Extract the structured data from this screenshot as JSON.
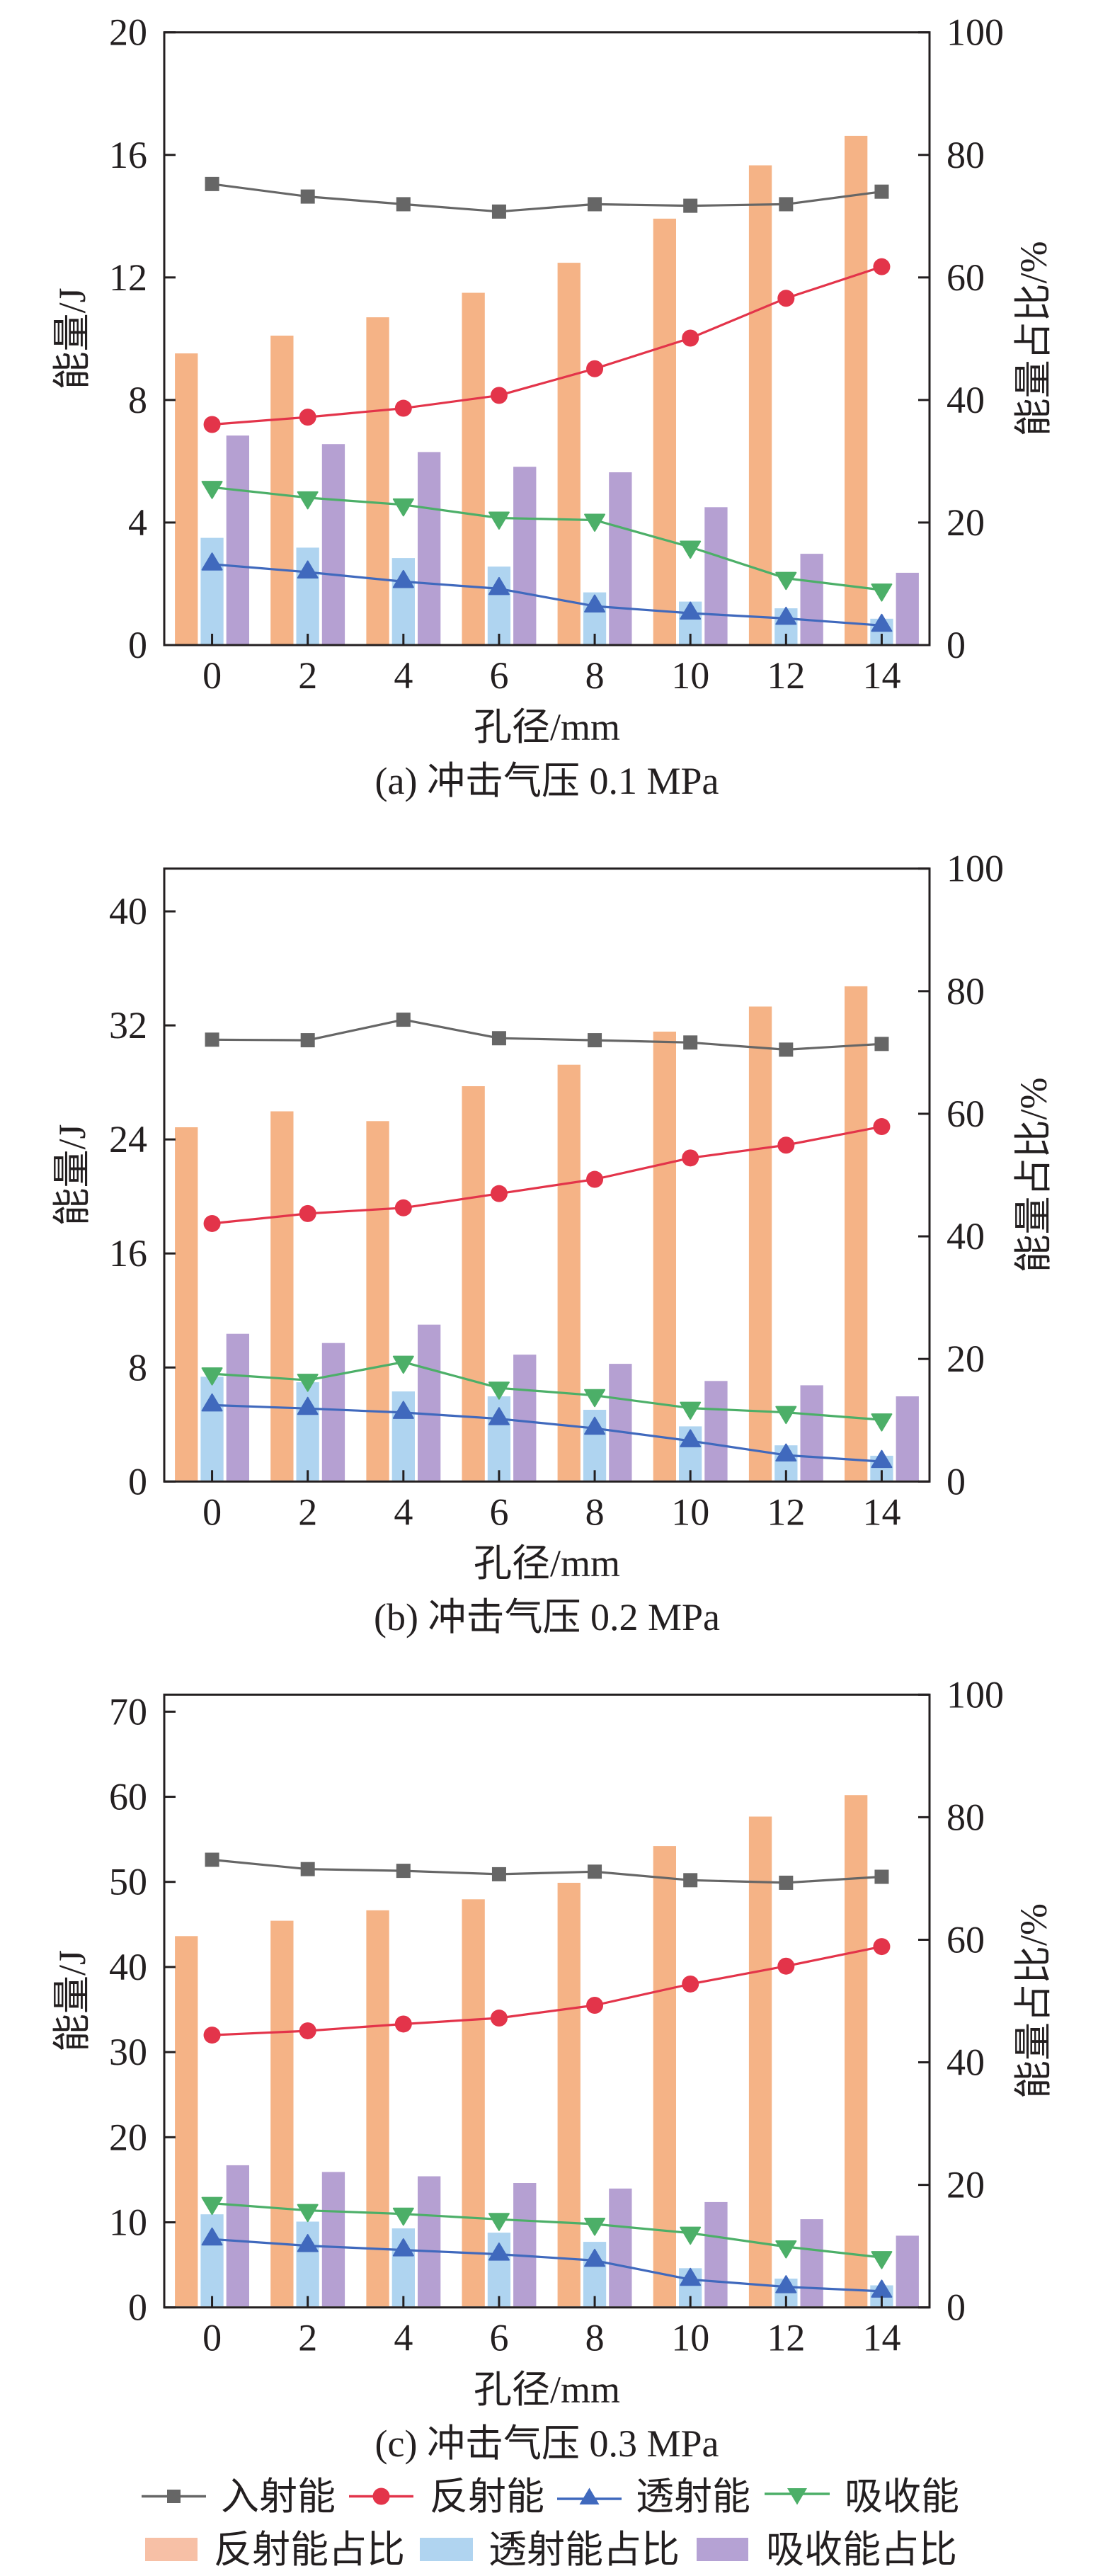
{
  "legend": {
    "placement": "bottom",
    "lines": [
      {
        "label": "入射能",
        "color": "#666666",
        "marker": "square"
      },
      {
        "label": "反射能",
        "color": "#e3344a",
        "marker": "circle"
      },
      {
        "label": "透射能",
        "color": "#4069bd",
        "marker": "triangle-up"
      },
      {
        "label": "吸收能",
        "color": "#4caf68",
        "marker": "triangle-down"
      }
    ],
    "bars": [
      {
        "label": "反射能占比",
        "color": "#f7c0a6"
      },
      {
        "label": "透射能占比",
        "color": "#b0d4f0"
      },
      {
        "label": "吸收能占比",
        "color": "#b5a2d4"
      }
    ]
  },
  "chart_data": [
    {
      "type": "bar",
      "combo": "bar+line",
      "title": "(a) 冲击气压 0.1 MPa",
      "xlabel": "孔径/mm",
      "ylabel": "能量/J",
      "y2label": "能量占比/%",
      "x": [
        0,
        2,
        4,
        6,
        8,
        10,
        12,
        14
      ],
      "xticks": [
        0,
        2,
        4,
        6,
        8,
        10,
        12,
        14
      ],
      "xlim": [
        -1,
        15
      ],
      "ylim": [
        0,
        20
      ],
      "yticks": [
        0,
        4,
        8,
        12,
        16,
        20
      ],
      "y2lim": [
        0,
        100
      ],
      "y2ticks": [
        0,
        20,
        40,
        60,
        80,
        100
      ],
      "grid": false,
      "legend": "bottom",
      "series": [
        {
          "name": "反射能占比",
          "kind": "bar",
          "axis": "right",
          "color": "#f5b386",
          "values": [
            47.6,
            50.5,
            53.5,
            57.5,
            62.4,
            69.6,
            78.3,
            83.1
          ]
        },
        {
          "name": "透射能占比",
          "kind": "bar",
          "axis": "right",
          "color": "#afd4f0",
          "values": [
            17.5,
            15.9,
            14.2,
            12.8,
            8.6,
            7.1,
            6.0,
            4.3
          ]
        },
        {
          "name": "吸收能占比",
          "kind": "bar",
          "axis": "right",
          "color": "#b5a0d2",
          "values": [
            34.2,
            32.8,
            31.5,
            29.1,
            28.2,
            22.5,
            14.9,
            11.8
          ]
        },
        {
          "name": "入射能",
          "kind": "line",
          "axis": "left",
          "marker": "square",
          "color": "#666666",
          "values": [
            15.05,
            14.64,
            14.39,
            14.15,
            14.39,
            14.34,
            14.39,
            14.8
          ]
        },
        {
          "name": "反射能",
          "kind": "line",
          "axis": "left",
          "marker": "circle",
          "color": "#e3344a",
          "values": [
            7.2,
            7.44,
            7.73,
            8.15,
            9.02,
            10.02,
            11.32,
            12.35
          ]
        },
        {
          "name": "透射能",
          "kind": "line",
          "axis": "left",
          "marker": "triangle-up",
          "color": "#4069bd",
          "values": [
            2.64,
            2.38,
            2.07,
            1.84,
            1.27,
            1.04,
            0.87,
            0.64
          ]
        },
        {
          "name": "吸收能",
          "kind": "line",
          "axis": "left",
          "marker": "triangle-down",
          "color": "#4caf68",
          "values": [
            5.15,
            4.81,
            4.58,
            4.15,
            4.08,
            3.2,
            2.18,
            1.8
          ]
        }
      ]
    },
    {
      "type": "bar",
      "combo": "bar+line",
      "title": "(b) 冲击气压 0.2 MPa",
      "xlabel": "孔径/mm",
      "ylabel": "能量/J",
      "y2label": "能量占比/%",
      "x": [
        0,
        2,
        4,
        6,
        8,
        10,
        12,
        14
      ],
      "xticks": [
        0,
        2,
        4,
        6,
        8,
        10,
        12,
        14
      ],
      "xlim": [
        -1,
        15
      ],
      "ylim": [
        0,
        43
      ],
      "yticks": [
        0,
        8,
        16,
        24,
        32,
        40
      ],
      "y2lim": [
        0,
        100
      ],
      "y2ticks": [
        0,
        20,
        40,
        60,
        80,
        100
      ],
      "grid": false,
      "legend": "bottom",
      "series": [
        {
          "name": "反射能占比",
          "kind": "bar",
          "axis": "right",
          "color": "#f5b386",
          "values": [
            57.8,
            60.4,
            58.8,
            64.5,
            68.0,
            73.4,
            77.5,
            80.8
          ]
        },
        {
          "name": "透射能占比",
          "kind": "bar",
          "axis": "right",
          "color": "#afd4f0",
          "values": [
            17.1,
            16.2,
            14.7,
            13.9,
            11.7,
            9.0,
            5.9,
            4.2
          ]
        },
        {
          "name": "吸收能占比",
          "kind": "bar",
          "axis": "right",
          "color": "#b5a0d2",
          "values": [
            24.1,
            22.6,
            25.6,
            20.7,
            19.2,
            16.4,
            15.7,
            13.9
          ]
        },
        {
          "name": "入射能",
          "kind": "line",
          "axis": "left",
          "marker": "square",
          "color": "#666666",
          "values": [
            31.0,
            30.96,
            32.4,
            31.1,
            30.96,
            30.8,
            30.3,
            30.7
          ]
        },
        {
          "name": "反射能",
          "kind": "line",
          "axis": "left",
          "marker": "circle",
          "color": "#e3344a",
          "values": [
            18.1,
            18.8,
            19.2,
            20.2,
            21.2,
            22.7,
            23.6,
            24.9
          ]
        },
        {
          "name": "透射能",
          "kind": "line",
          "axis": "left",
          "marker": "triangle-up",
          "color": "#4069bd",
          "values": [
            5.36,
            5.12,
            4.84,
            4.4,
            3.73,
            2.85,
            1.85,
            1.4
          ]
        },
        {
          "name": "吸收能",
          "kind": "line",
          "axis": "left",
          "marker": "triangle-down",
          "color": "#4caf68",
          "values": [
            7.56,
            7.11,
            8.38,
            6.56,
            6.04,
            5.15,
            4.85,
            4.33
          ]
        }
      ]
    },
    {
      "type": "bar",
      "combo": "bar+line",
      "title": "(c) 冲击气压 0.3 MPa",
      "xlabel": "孔径/mm",
      "ylabel": "能量/J",
      "y2label": "能量占比/%",
      "x": [
        0,
        2,
        4,
        6,
        8,
        10,
        12,
        14
      ],
      "xticks": [
        0,
        2,
        4,
        6,
        8,
        10,
        12,
        14
      ],
      "xlim": [
        -1,
        15
      ],
      "ylim": [
        0,
        72
      ],
      "yticks": [
        0,
        10,
        20,
        30,
        40,
        50,
        60,
        70
      ],
      "y2lim": [
        0,
        100
      ],
      "y2ticks": [
        0,
        20,
        40,
        60,
        80,
        100
      ],
      "grid": false,
      "legend": "bottom",
      "series": [
        {
          "name": "反射能占比",
          "kind": "bar",
          "axis": "right",
          "color": "#f5b386",
          "values": [
            60.6,
            63.1,
            64.8,
            66.6,
            69.3,
            75.3,
            80.1,
            83.6
          ]
        },
        {
          "name": "透射能占比",
          "kind": "bar",
          "axis": "right",
          "color": "#afd4f0",
          "values": [
            15.2,
            14.0,
            12.9,
            12.2,
            10.7,
            6.4,
            4.7,
            3.6
          ]
        },
        {
          "name": "吸收能占比",
          "kind": "bar",
          "axis": "right",
          "color": "#b5a0d2",
          "values": [
            23.2,
            22.1,
            21.4,
            20.3,
            19.4,
            17.2,
            14.4,
            11.7
          ]
        },
        {
          "name": "入射能",
          "kind": "line",
          "axis": "left",
          "marker": "square",
          "color": "#666666",
          "values": [
            52.6,
            51.5,
            51.3,
            50.9,
            51.2,
            50.2,
            49.9,
            50.6
          ]
        },
        {
          "name": "反射能",
          "kind": "line",
          "axis": "left",
          "marker": "circle",
          "color": "#e3344a",
          "values": [
            32.0,
            32.5,
            33.3,
            34.0,
            35.5,
            38.0,
            40.1,
            42.4
          ]
        },
        {
          "name": "透射能",
          "kind": "line",
          "axis": "left",
          "marker": "triangle-up",
          "color": "#4069bd",
          "values": [
            8.02,
            7.25,
            6.75,
            6.25,
            5.52,
            3.28,
            2.42,
            1.9
          ]
        },
        {
          "name": "吸收能",
          "kind": "line",
          "axis": "left",
          "marker": "triangle-down",
          "color": "#4caf68",
          "values": [
            12.24,
            11.4,
            10.98,
            10.35,
            9.79,
            8.74,
            7.13,
            5.87
          ]
        }
      ]
    }
  ]
}
